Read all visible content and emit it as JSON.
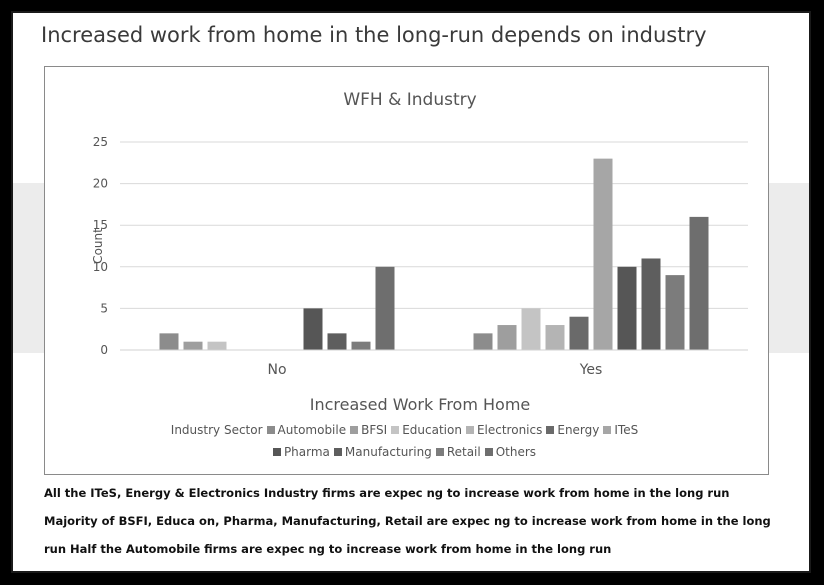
{
  "slide": {
    "title": "Increased work from home in the long-run depends on industry",
    "captions": [
      "All the ITeS, Energy & Electronics Industry firms are expec ng to increase work from home in the long run",
      "Majority of BSFI, Educa on, Pharma, Manufacturing, Retail are expec ng to increase work from home in the long",
      "run Half the Automobile firms are expec ng to increase work from home in the long run"
    ]
  },
  "chart_data": {
    "type": "bar",
    "title": "WFH & Industry",
    "xlabel": "Increased Work From Home",
    "ylabel": "Count",
    "categories": [
      "No",
      "Yes"
    ],
    "ylim": [
      0,
      25
    ],
    "yticks": [
      0,
      5,
      10,
      15,
      20,
      25
    ],
    "grid": true,
    "legend_title": "Industry Sector",
    "legend_position": "bottom",
    "series": [
      {
        "name": "Automobile",
        "values": [
          2,
          2
        ],
        "color": "#8c8c8c"
      },
      {
        "name": "BFSI",
        "values": [
          1,
          3
        ],
        "color": "#9e9e9e"
      },
      {
        "name": "Education",
        "values": [
          1,
          5
        ],
        "color": "#c4c4c4"
      },
      {
        "name": "Electronics",
        "values": [
          0,
          3
        ],
        "color": "#b4b4b4"
      },
      {
        "name": "Energy",
        "values": [
          0,
          4
        ],
        "color": "#6a6a6a"
      },
      {
        "name": "ITeS",
        "values": [
          0,
          23
        ],
        "color": "#a6a6a6"
      },
      {
        "name": "Pharma",
        "values": [
          5,
          10
        ],
        "color": "#565656"
      },
      {
        "name": "Manufacturing",
        "values": [
          2,
          11
        ],
        "color": "#5e5e5e"
      },
      {
        "name": "Retail",
        "values": [
          1,
          9
        ],
        "color": "#7c7c7c"
      },
      {
        "name": "Others",
        "values": [
          10,
          16
        ],
        "color": "#6e6e6e"
      }
    ]
  }
}
